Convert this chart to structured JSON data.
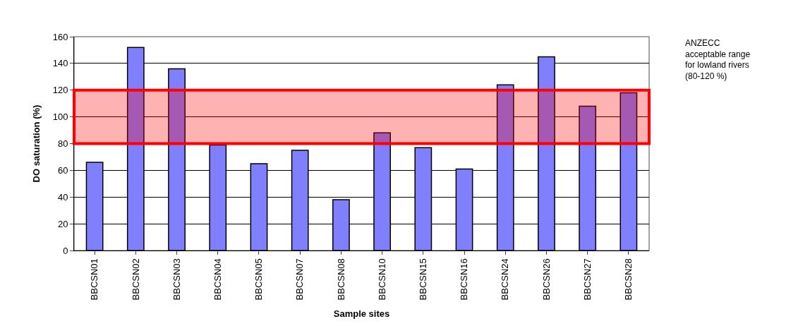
{
  "chart_data": {
    "type": "bar",
    "xlabel": "Sample sites",
    "ylabel": "DO saturation (%)",
    "categories": [
      "BBCSN01",
      "BBCSN02",
      "BBCSN03",
      "BBCSN04",
      "BBCSN05",
      "BBCSN07",
      "BBCSN08",
      "BBCSN10",
      "BBCSN15",
      "BBCSN16",
      "BBCSN24",
      "BBCSN26",
      "BBCSN27",
      "BBCSN28"
    ],
    "values": [
      66,
      152,
      136,
      79,
      65,
      75,
      38,
      88,
      77,
      61,
      124,
      145,
      108,
      118
    ],
    "color": "#8080ff",
    "ylim": [
      0,
      160
    ],
    "yticks": [
      0,
      20,
      40,
      60,
      80,
      100,
      120,
      140,
      160
    ],
    "grid": "y",
    "annotations": [
      "ANZECC\nacceptable range\nfor lowland rivers\n(80-120 %)"
    ],
    "bands": [
      {
        "axis": "y",
        "from": 80,
        "to": 120,
        "color": "#ff0000"
      }
    ]
  }
}
